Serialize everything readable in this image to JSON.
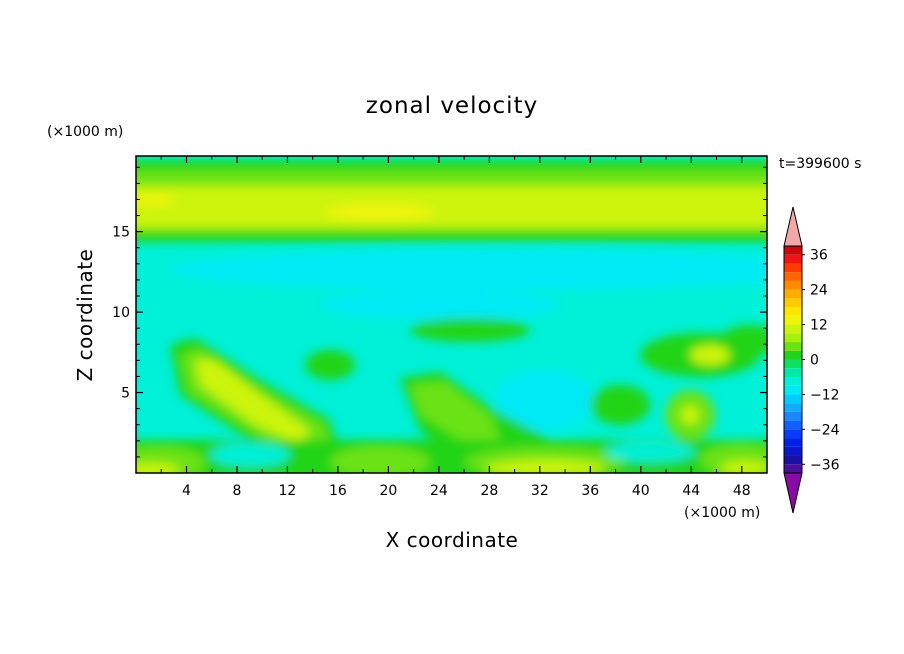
{
  "chart_data": {
    "type": "heatmap",
    "title": "zonal velocity",
    "xlabel": "X coordinate",
    "ylabel": "Z coordinate",
    "x_unit": "(×1000 m)",
    "y_unit": "(×1000 m)",
    "time_label": "t=399600 s",
    "xlim": [
      0,
      50
    ],
    "ylim": [
      0,
      19.7
    ],
    "x_ticks": [
      4,
      8,
      12,
      16,
      20,
      24,
      28,
      32,
      36,
      40,
      44,
      48
    ],
    "x_tick_labels": [
      "4",
      "8",
      "12",
      "16",
      "20",
      "24",
      "28",
      "32",
      "36",
      "40",
      "44",
      "48"
    ],
    "y_ticks": [
      5,
      10,
      15
    ],
    "y_tick_labels": [
      "5",
      "10",
      "15"
    ],
    "colorbar": {
      "levels": [
        -42,
        -39,
        -36,
        -33,
        -30,
        -27,
        -24,
        -21,
        -18,
        -15,
        -12,
        -9,
        -6,
        -3,
        0,
        3,
        6,
        9,
        12,
        15,
        18,
        21,
        24,
        27,
        30,
        33,
        36,
        39,
        42
      ],
      "colors": [
        "#8a0aa8",
        "#4a0f9c",
        "#1a10a0",
        "#0b17c8",
        "#0022e6",
        "#0a3cff",
        "#1060ff",
        "#1a86ff",
        "#15aaff",
        "#00ccff",
        "#00eaf5",
        "#00f0d8",
        "#00e8a8",
        "#10e060",
        "#22d418",
        "#6ae214",
        "#a6f00e",
        "#ccf40a",
        "#eef40a",
        "#ffe600",
        "#ffcc00",
        "#ffad00",
        "#ff8c00",
        "#ff6400",
        "#ff3c00",
        "#f01414",
        "#c80a0a",
        "#f2a8a8"
      ],
      "tick_values": [
        -36,
        -24,
        -12,
        0,
        12,
        24,
        36
      ],
      "tick_labels": [
        "−36",
        "−24",
        "−12",
        "0",
        "12",
        "24",
        "36"
      ],
      "extend": "both"
    }
  }
}
